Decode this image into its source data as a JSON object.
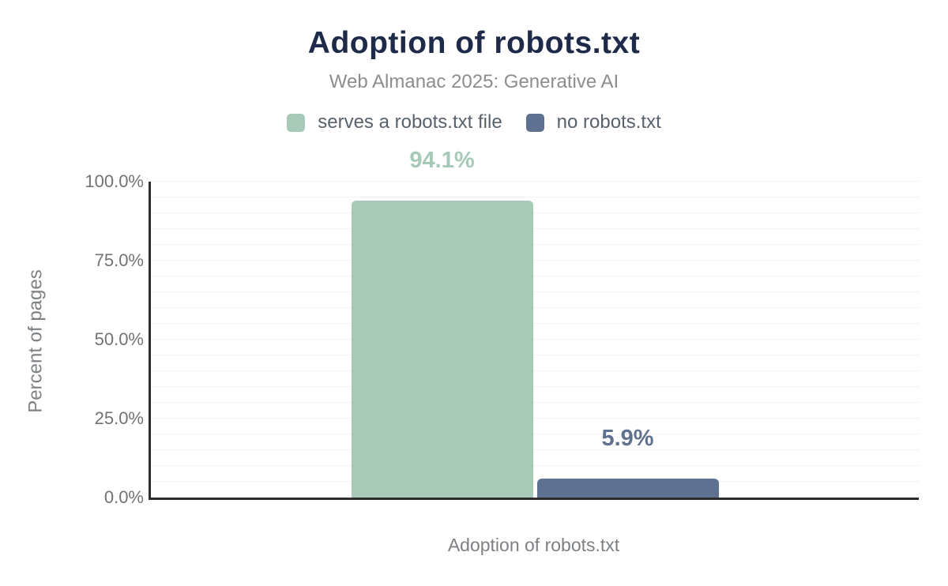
{
  "header": {
    "title": "Adoption of robots.txt",
    "subtitle": "Web Almanac 2025: Generative AI"
  },
  "legend": {
    "items": [
      {
        "label": "serves a robots.txt file",
        "color": "#a6c9b8"
      },
      {
        "label": "no robots.txt",
        "color": "#5f7190"
      }
    ]
  },
  "chart_data": {
    "type": "bar",
    "title": "Adoption of robots.txt",
    "subtitle": "Web Almanac 2025: Generative AI",
    "categories": [
      "Adoption of robots.txt"
    ],
    "series": [
      {
        "name": "serves a robots.txt file",
        "values": [
          94.1
        ],
        "data_label": "94.1%",
        "color": "#a6c9b8"
      },
      {
        "name": "no robots.txt",
        "values": [
          5.9
        ],
        "data_label": "5.9%",
        "color": "#5f7190"
      }
    ],
    "xlabel": "Adoption of robots.txt",
    "ylabel": "Percent of pages",
    "ylim": [
      0,
      100
    ],
    "y_ticks": [
      {
        "value": 0,
        "label": "0.0%"
      },
      {
        "value": 25,
        "label": "25.0%"
      },
      {
        "value": 50,
        "label": "50.0%"
      },
      {
        "value": 75,
        "label": "75.0%"
      },
      {
        "value": 100,
        "label": "100.0%"
      }
    ],
    "grid": true,
    "grid_step": 5,
    "legend_position": "top",
    "colors": {
      "axis_line": "#2c2c2c",
      "gridline": "#f2f2f2",
      "title": "#1e2a49"
    }
  }
}
